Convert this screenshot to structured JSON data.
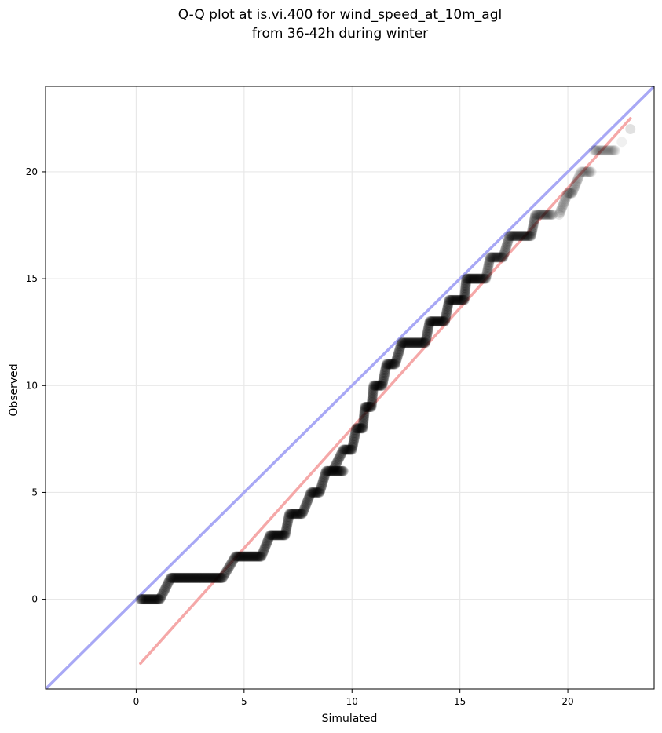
{
  "chart_data": {
    "type": "scatter",
    "title": [
      "Q-Q plot at is.vi.400 for wind_speed_at_10m_agl",
      "from 36-42h during winter"
    ],
    "xlabel": "Simulated",
    "ylabel": "Observed",
    "xlim": [
      -4.2,
      24.0
    ],
    "ylim": [
      -4.2,
      24.0
    ],
    "xticks": [
      0,
      5,
      10,
      15,
      20
    ],
    "yticks": [
      0,
      5,
      10,
      15,
      20
    ],
    "grid": true,
    "colors": {
      "points": "#000000",
      "identity_line": "#a8a8f5",
      "fit_line": "#f5a8a8",
      "grid": "#e8e8e8"
    },
    "identity_line": {
      "x": [
        -4.2,
        24.0
      ],
      "y": [
        -4.2,
        24.0
      ]
    },
    "fit_line": {
      "x": [
        0.2,
        22.9
      ],
      "y": [
        -3.0,
        22.5
      ]
    },
    "steps": [
      {
        "y": 0,
        "x_start": 0.2,
        "x_end": 1.1
      },
      {
        "y": 1,
        "x_start": 1.6,
        "x_end": 4.0
      },
      {
        "y": 2,
        "x_start": 4.6,
        "x_end": 5.8
      },
      {
        "y": 3,
        "x_start": 6.2,
        "x_end": 6.9
      },
      {
        "y": 4,
        "x_start": 7.1,
        "x_end": 7.7
      },
      {
        "y": 5,
        "x_start": 8.1,
        "x_end": 8.5
      },
      {
        "y": 6,
        "x_start": 8.8,
        "x_end": 9.6
      },
      {
        "y": 7,
        "x_start": 9.6,
        "x_end": 10.0
      },
      {
        "y": 8,
        "x_start": 10.2,
        "x_end": 10.5
      },
      {
        "y": 9,
        "x_start": 10.6,
        "x_end": 10.9
      },
      {
        "y": 10,
        "x_start": 11.0,
        "x_end": 11.4
      },
      {
        "y": 11,
        "x_start": 11.6,
        "x_end": 12.0
      },
      {
        "y": 12,
        "x_start": 12.3,
        "x_end": 13.4
      },
      {
        "y": 13,
        "x_start": 13.6,
        "x_end": 14.3
      },
      {
        "y": 14,
        "x_start": 14.5,
        "x_end": 15.2
      },
      {
        "y": 15,
        "x_start": 15.3,
        "x_end": 16.2
      },
      {
        "y": 16,
        "x_start": 16.4,
        "x_end": 17.0
      },
      {
        "y": 17,
        "x_start": 17.3,
        "x_end": 18.3
      },
      {
        "y": 18,
        "x_start": 18.5,
        "x_end": 19.3
      },
      {
        "y": 19,
        "x_start": 20.0,
        "x_end": 20.2
      },
      {
        "y": 20,
        "x_start": 20.6,
        "x_end": 21.1
      },
      {
        "y": 21,
        "x_start": 21.2,
        "x_end": 22.2
      },
      {
        "y": 22,
        "x_start": 22.9,
        "x_end": 22.9
      }
    ],
    "transitions": [
      {
        "x_start": 1.1,
        "x_end": 1.6,
        "y_start": 0,
        "y_end": 1
      },
      {
        "x_start": 4.0,
        "x_end": 4.6,
        "y_start": 1,
        "y_end": 2
      },
      {
        "x_start": 5.8,
        "x_end": 6.2,
        "y_start": 2,
        "y_end": 3
      },
      {
        "x_start": 6.9,
        "x_end": 7.1,
        "y_start": 3,
        "y_end": 4
      },
      {
        "x_start": 7.7,
        "x_end": 8.1,
        "y_start": 4,
        "y_end": 5
      },
      {
        "x_start": 8.5,
        "x_end": 8.8,
        "y_start": 5,
        "y_end": 6
      },
      {
        "x_start": 9.1,
        "x_end": 9.6,
        "y_start": 6,
        "y_end": 7
      },
      {
        "x_start": 10.0,
        "x_end": 10.2,
        "y_start": 7,
        "y_end": 8
      },
      {
        "x_start": 10.5,
        "x_end": 10.6,
        "y_start": 8,
        "y_end": 9
      },
      {
        "x_start": 10.9,
        "x_end": 11.0,
        "y_start": 9,
        "y_end": 10
      },
      {
        "x_start": 11.4,
        "x_end": 11.6,
        "y_start": 10,
        "y_end": 11
      },
      {
        "x_start": 12.0,
        "x_end": 12.3,
        "y_start": 11,
        "y_end": 12
      },
      {
        "x_start": 13.4,
        "x_end": 13.6,
        "y_start": 12,
        "y_end": 13
      },
      {
        "x_start": 14.3,
        "x_end": 14.5,
        "y_start": 13,
        "y_end": 14
      },
      {
        "x_start": 15.2,
        "x_end": 15.3,
        "y_start": 14,
        "y_end": 15
      },
      {
        "x_start": 16.2,
        "x_end": 16.4,
        "y_start": 15,
        "y_end": 16
      },
      {
        "x_start": 17.0,
        "x_end": 17.3,
        "y_start": 16,
        "y_end": 17
      },
      {
        "x_start": 18.3,
        "x_end": 18.5,
        "y_start": 17,
        "y_end": 18
      },
      {
        "x_start": 19.6,
        "x_end": 20.0,
        "y_start": 18,
        "y_end": 19
      },
      {
        "x_start": 20.2,
        "x_end": 20.6,
        "y_start": 19,
        "y_end": 20
      }
    ],
    "isolated_points": [
      {
        "x": 19.6,
        "y": 18.0
      },
      {
        "x": 21.0,
        "y": 20.0
      },
      {
        "x": 22.5,
        "y": 21.4
      },
      {
        "x": 21.3,
        "y": 21.0
      }
    ]
  }
}
